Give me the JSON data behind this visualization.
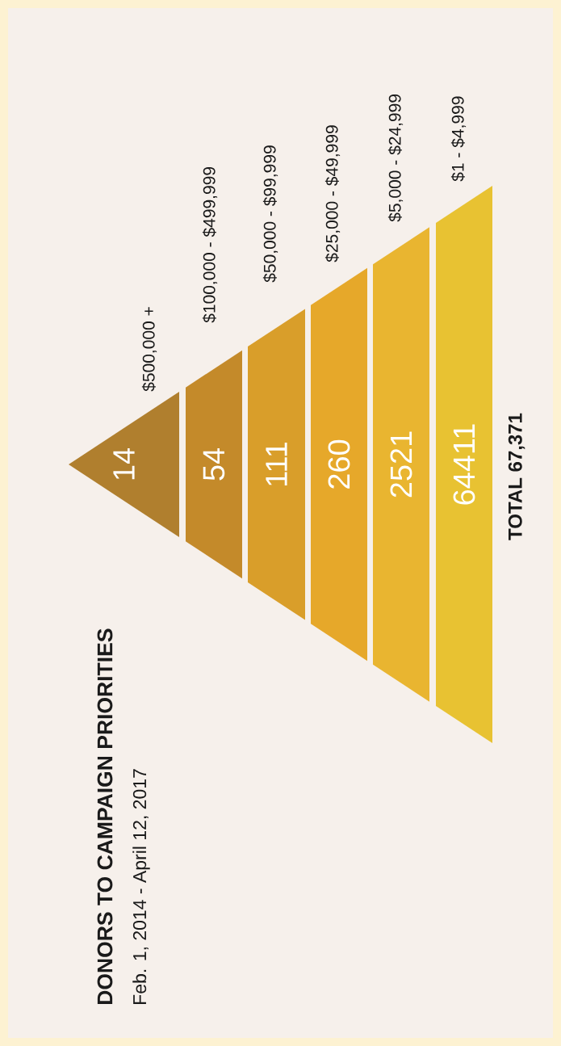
{
  "chart_data": {
    "type": "other",
    "title": "DONORS TO CAMPAIGN PRIORITIES",
    "subtitle": "Feb. 1, 2014 - April 12, 2017",
    "categories": [
      "$500,000 +",
      "$100,000 - $499,999",
      "$50,000 - $99,999",
      "$25,000 - $49,999",
      "$5,000 - $24,999",
      "$1 - $4,999"
    ],
    "values": [
      14,
      54,
      111,
      260,
      2521,
      64411
    ],
    "data_labels": true,
    "colors": [
      "#b07f2e",
      "#c48a2a",
      "#d99e2a",
      "#e6a82a",
      "#e9b530",
      "#e8c232"
    ],
    "annotations": [
      "TOTAL 67,371"
    ]
  }
}
